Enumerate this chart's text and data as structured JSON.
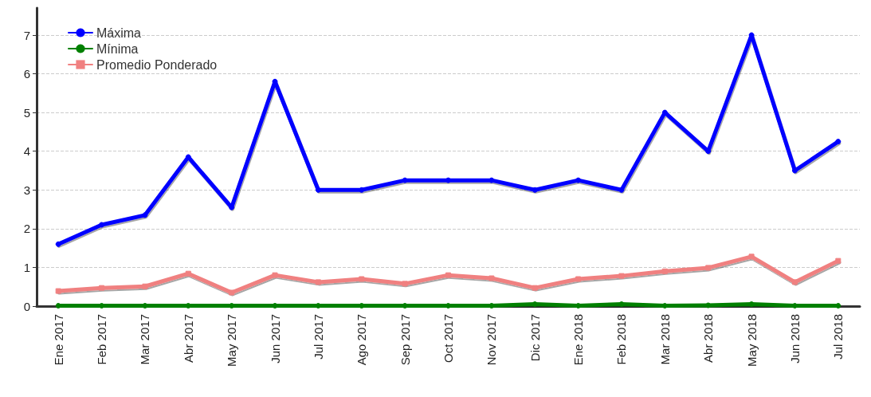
{
  "chart_data": {
    "type": "line",
    "categories": [
      "Ene 2017",
      "Feb 2017",
      "Mar 2017",
      "Abr 2017",
      "May 2017",
      "Jun 2017",
      "Jul 2017",
      "Ago 2017",
      "Sep 2017",
      "Oct 2017",
      "Nov 2017",
      "Dic 2017",
      "Ene 2018",
      "Feb 2018",
      "Mar 2018",
      "Abr 2018",
      "May 2018",
      "Jun 2018",
      "Jul 2018"
    ],
    "series": [
      {
        "name": "Máxima",
        "color": "#0000ff",
        "marker": "circle",
        "values": [
          1.6,
          2.1,
          2.35,
          3.85,
          2.55,
          5.8,
          3,
          3,
          3.25,
          3.25,
          3.25,
          3,
          3.25,
          3,
          5,
          4,
          7,
          3.5,
          4.25
        ]
      },
      {
        "name": "Mínima",
        "color": "#008000",
        "marker": "circle",
        "values": [
          0.01,
          0.01,
          0.01,
          0.01,
          0.01,
          0.01,
          0.01,
          0.01,
          0.01,
          0.01,
          0.01,
          0.05,
          0.01,
          0.05,
          0.01,
          0.02,
          0.05,
          0.01,
          0.01
        ]
      },
      {
        "name": "Promedio Ponderado",
        "color": "#f08080",
        "marker": "square",
        "values": [
          0.39,
          0.47,
          0.51,
          0.84,
          0.35,
          0.8,
          0.62,
          0.7,
          0.58,
          0.8,
          0.72,
          0.47,
          0.7,
          0.78,
          0.9,
          0.99,
          1.28,
          0.62,
          1.17
        ]
      }
    ],
    "ylim": [
      0,
      7.7
    ],
    "yticks": [
      0,
      1,
      2,
      3,
      4,
      5,
      6,
      7
    ],
    "grid": "y",
    "legend": "top left",
    "line_style": "solid"
  }
}
